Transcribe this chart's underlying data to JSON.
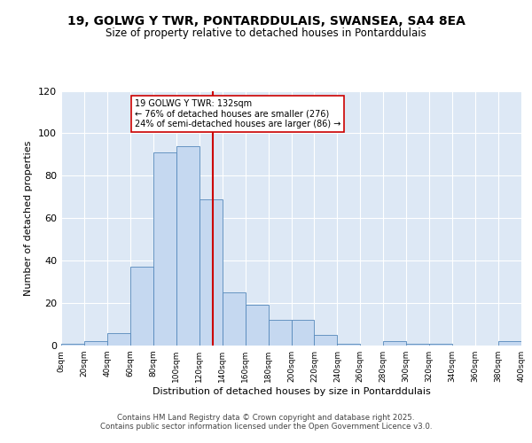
{
  "title": "19, GOLWG Y TWR, PONTARDDULAIS, SWANSEA, SA4 8EA",
  "subtitle": "Size of property relative to detached houses in Pontarddulais",
  "xlabel": "Distribution of detached houses by size in Pontarddulais",
  "ylabel": "Number of detached properties",
  "bar_color": "#c5d8f0",
  "bar_edge_color": "#5588bb",
  "background_color": "#dde8f5",
  "bin_edges": [
    0,
    20,
    40,
    60,
    80,
    100,
    120,
    140,
    160,
    180,
    200,
    220,
    240,
    260,
    280,
    300,
    320,
    340,
    360,
    380,
    400
  ],
  "bar_heights": [
    1,
    2,
    6,
    37,
    91,
    94,
    69,
    25,
    19,
    12,
    12,
    5,
    1,
    0,
    2,
    1,
    1,
    0,
    0,
    2
  ],
  "property_size": 132,
  "vline_color": "#cc0000",
  "annotation_line1": "19 GOLWG Y TWR: 132sqm",
  "annotation_line2": "← 76% of detached houses are smaller (276)",
  "annotation_line3": "24% of semi-detached houses are larger (86) →",
  "annotation_box_color": "white",
  "annotation_box_edge": "#cc0000",
  "ylim": [
    0,
    120
  ],
  "yticks": [
    0,
    20,
    40,
    60,
    80,
    100,
    120
  ],
  "footer_line1": "Contains HM Land Registry data © Crown copyright and database right 2025.",
  "footer_line2": "Contains public sector information licensed under the Open Government Licence v3.0.",
  "tick_labels": [
    "0sqm",
    "20sqm",
    "40sqm",
    "60sqm",
    "80sqm",
    "100sqm",
    "120sqm",
    "140sqm",
    "160sqm",
    "180sqm",
    "200sqm",
    "220sqm",
    "240sqm",
    "260sqm",
    "280sqm",
    "300sqm",
    "320sqm",
    "340sqm",
    "360sqm",
    "380sqm",
    "400sqm"
  ]
}
